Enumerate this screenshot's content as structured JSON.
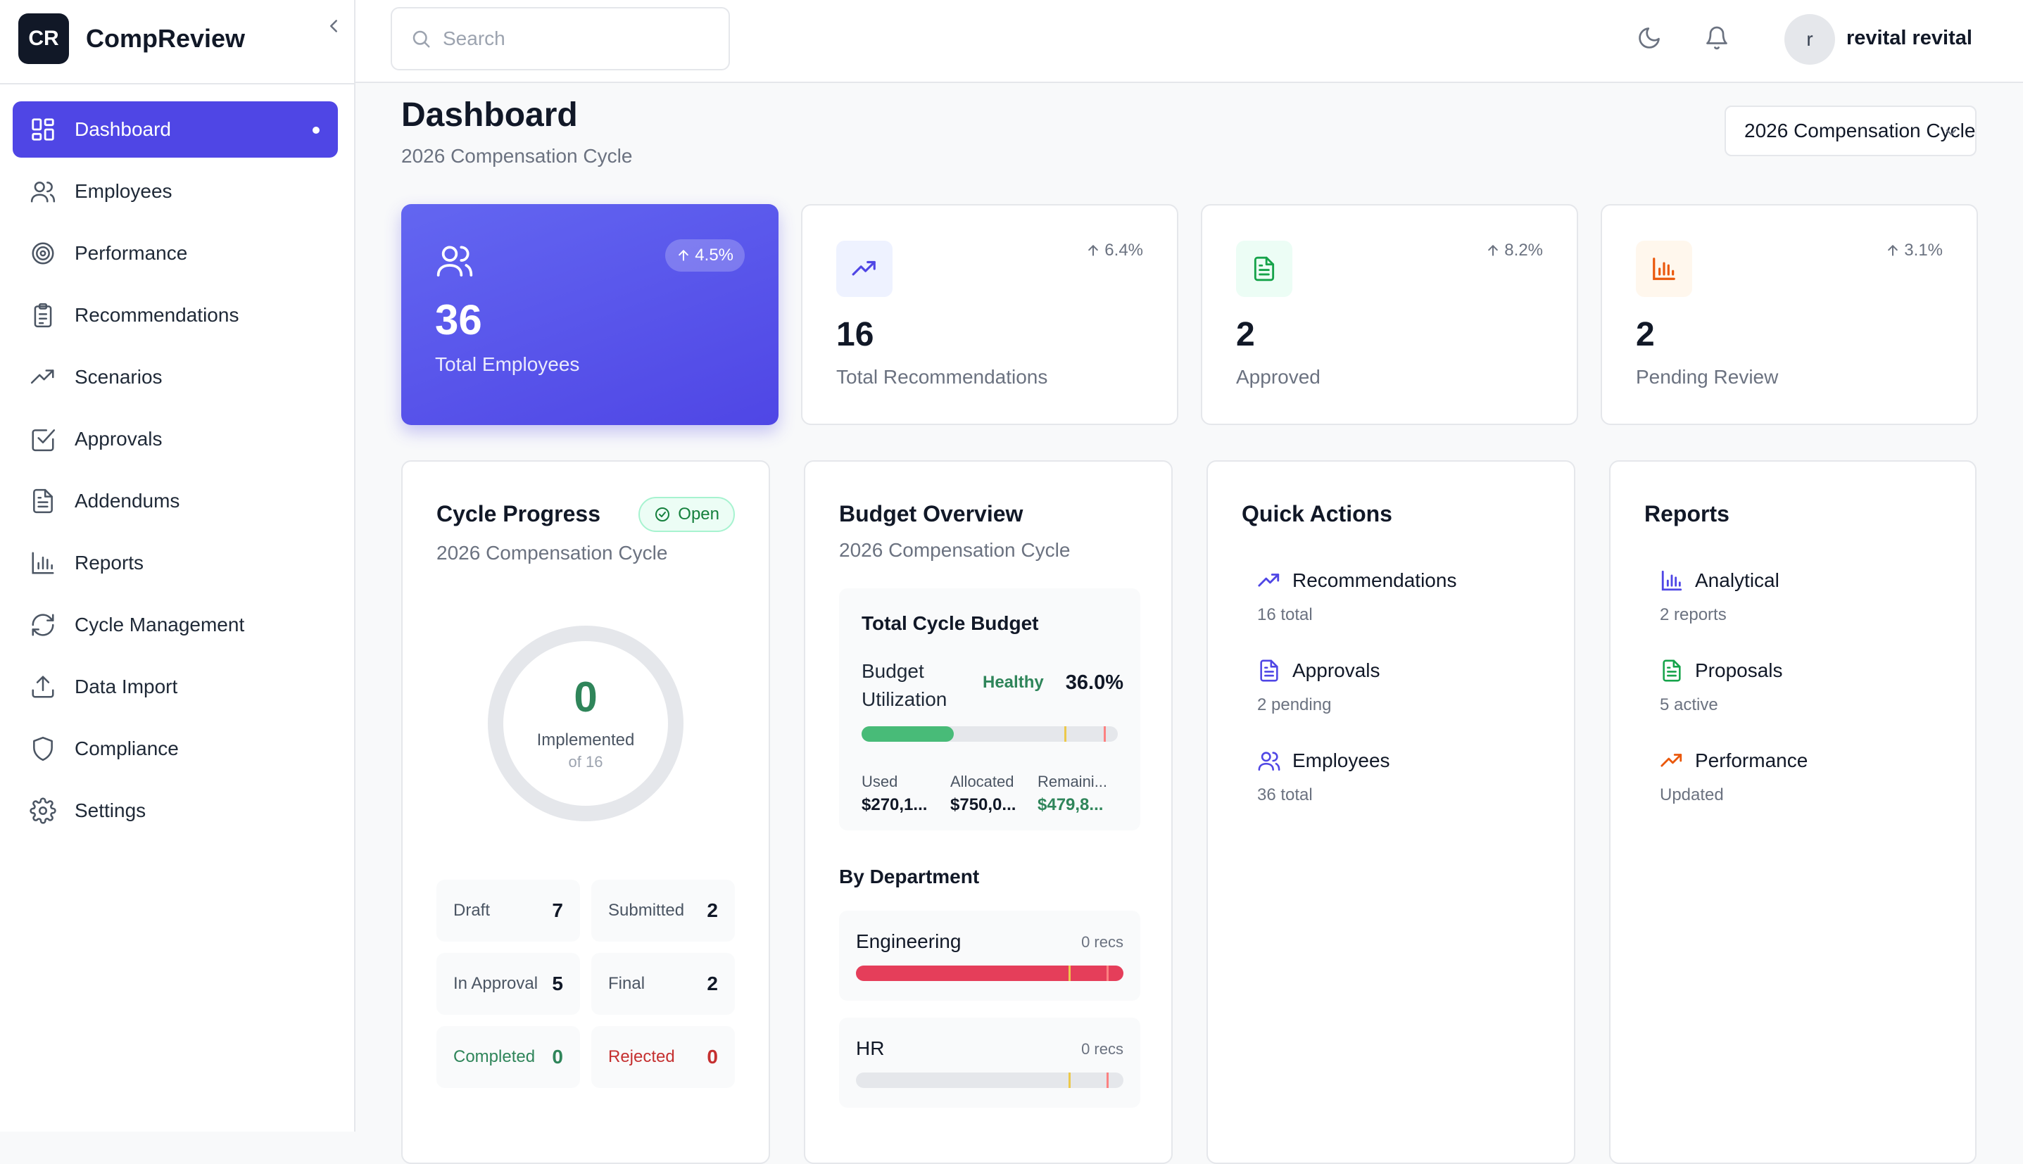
{
  "app": {
    "logo_text": "CR",
    "name": "CompReview"
  },
  "sidebar": {
    "items": [
      {
        "label": "Dashboard",
        "icon": "dashboard-grid-icon",
        "active": true
      },
      {
        "label": "Employees",
        "icon": "users-icon"
      },
      {
        "label": "Performance",
        "icon": "target-icon"
      },
      {
        "label": "Recommendations",
        "icon": "clipboard-icon"
      },
      {
        "label": "Scenarios",
        "icon": "trending-up-icon"
      },
      {
        "label": "Approvals",
        "icon": "check-square-icon"
      },
      {
        "label": "Addendums",
        "icon": "file-text-icon"
      },
      {
        "label": "Reports",
        "icon": "bar-chart-icon"
      },
      {
        "label": "Cycle Management",
        "icon": "refresh-icon"
      },
      {
        "label": "Data Import",
        "icon": "upload-icon"
      },
      {
        "label": "Compliance",
        "icon": "shield-icon"
      },
      {
        "label": "Settings",
        "icon": "gear-icon"
      }
    ]
  },
  "topbar": {
    "search_placeholder": "Search",
    "avatar_initial": "r",
    "user_name": "revital revital"
  },
  "page": {
    "title": "Dashboard",
    "subtitle": "2026 Compensation Cycle",
    "cycle_selector": "2026 Compensation Cycle"
  },
  "stats": [
    {
      "value": "36",
      "label": "Total Employees",
      "trend": "4.5%",
      "icon": "users-icon"
    },
    {
      "value": "16",
      "label": "Total Recommendations",
      "trend": "6.4%",
      "icon": "trending-up-icon",
      "accent": "#4f46e5",
      "bg": "#eef2ff"
    },
    {
      "value": "2",
      "label": "Approved",
      "trend": "8.2%",
      "icon": "file-text-icon",
      "accent": "#16a34a",
      "bg": "#ecfdf5"
    },
    {
      "value": "2",
      "label": "Pending Review",
      "trend": "3.1%",
      "icon": "bar-chart-icon",
      "accent": "#ea580c",
      "bg": "#fff7ed"
    }
  ],
  "cycle_progress": {
    "title": "Cycle Progress",
    "badge": "Open",
    "subtitle": "2026 Compensation Cycle",
    "implemented_value": "0",
    "implemented_label": "Implemented",
    "implemented_of": "of 16",
    "progress_fraction": 0,
    "statuses": [
      {
        "label": "Draft",
        "value": "7"
      },
      {
        "label": "Submitted",
        "value": "2"
      },
      {
        "label": "In Approval",
        "value": "5"
      },
      {
        "label": "Final",
        "value": "2"
      },
      {
        "label": "Completed",
        "value": "0",
        "tone": "green"
      },
      {
        "label": "Rejected",
        "value": "0",
        "tone": "red"
      }
    ]
  },
  "budget": {
    "title": "Budget Overview",
    "subtitle": "2026 Compensation Cycle",
    "box_title": "Total Cycle Budget",
    "utilization_label": "Budget Utilization",
    "health": "Healthy",
    "utilization_pct": "36.0%",
    "utilization_fraction": 0.36,
    "used_label": "Used",
    "used_value": "$270,1...",
    "allocated_label": "Allocated",
    "allocated_value": "$750,0...",
    "remaining_label": "Remaini...",
    "remaining_value": "$479,8...",
    "by_department": "By Department",
    "departments": [
      {
        "name": "Engineering",
        "recs": "0 recs",
        "fill_fraction": 1.0,
        "color": "#e53e5a"
      },
      {
        "name": "HR",
        "recs": "0 recs",
        "fill_fraction": 0.0,
        "color": "#e5e7eb"
      }
    ]
  },
  "quick_actions": {
    "title": "Quick Actions",
    "items": [
      {
        "label": "Recommendations",
        "sub": "16 total",
        "icon": "trending-up-icon",
        "color": "#4f46e5"
      },
      {
        "label": "Approvals",
        "sub": "2 pending",
        "icon": "file-text-icon",
        "color": "#4f46e5"
      },
      {
        "label": "Employees",
        "sub": "36 total",
        "icon": "users-icon",
        "color": "#4f46e5"
      }
    ]
  },
  "reports": {
    "title": "Reports",
    "items": [
      {
        "label": "Analytical",
        "sub": "2 reports",
        "icon": "bar-chart-icon",
        "color": "#4f46e5"
      },
      {
        "label": "Proposals",
        "sub": "5 active",
        "icon": "file-text-icon",
        "color": "#16a34a"
      },
      {
        "label": "Performance",
        "sub": "Updated",
        "icon": "trending-up-icon",
        "color": "#ea580c"
      }
    ]
  }
}
